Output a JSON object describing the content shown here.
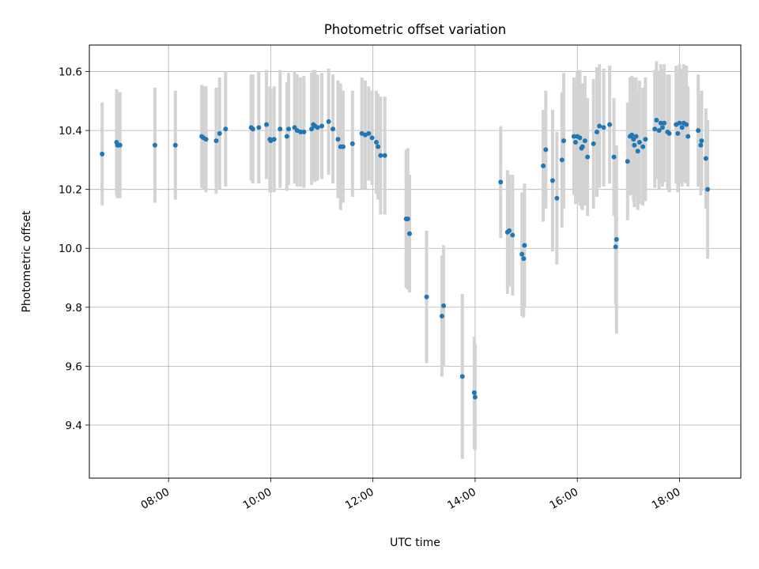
{
  "chart_data": {
    "type": "scatter",
    "title": "Photometric offset variation",
    "xlabel": "UTC time",
    "ylabel": "Photometric offset",
    "xlim": [
      "06:27",
      "19:12"
    ],
    "ylim": [
      9.22,
      10.69
    ],
    "x_ticks": [
      "08:00",
      "10:00",
      "12:00",
      "14:00",
      "16:00",
      "18:00"
    ],
    "y_ticks": [
      9.4,
      9.6,
      9.8,
      10.0,
      10.2,
      10.4,
      10.6
    ],
    "y_tick_labels": [
      "9.4",
      "9.6",
      "9.8",
      "10.0",
      "10.2",
      "10.4",
      "10.6"
    ],
    "grid": true,
    "marker_color": "#1f77b4",
    "errorbar_color": "#d3d3d3",
    "points": [
      {
        "x": "06:42",
        "y": 10.32,
        "yerr": 0.175
      },
      {
        "x": "06:59",
        "y": 10.36,
        "yerr": 0.18
      },
      {
        "x": "07:00",
        "y": 10.35,
        "yerr": 0.18
      },
      {
        "x": "07:03",
        "y": 10.35,
        "yerr": 0.18
      },
      {
        "x": "07:44",
        "y": 10.35,
        "yerr": 0.195
      },
      {
        "x": "08:08",
        "y": 10.35,
        "yerr": 0.185
      },
      {
        "x": "08:39",
        "y": 10.38,
        "yerr": 0.175
      },
      {
        "x": "08:41",
        "y": 10.375,
        "yerr": 0.175
      },
      {
        "x": "08:44",
        "y": 10.37,
        "yerr": 0.18
      },
      {
        "x": "08:56",
        "y": 10.365,
        "yerr": 0.18
      },
      {
        "x": "09:00",
        "y": 10.39,
        "yerr": 0.19
      },
      {
        "x": "09:07",
        "y": 10.405,
        "yerr": 0.195
      },
      {
        "x": "09:37",
        "y": 10.41,
        "yerr": 0.18
      },
      {
        "x": "09:39",
        "y": 10.405,
        "yerr": 0.185
      },
      {
        "x": "09:46",
        "y": 10.41,
        "yerr": 0.19
      },
      {
        "x": "09:55",
        "y": 10.42,
        "yerr": 0.185
      },
      {
        "x": "09:59",
        "y": 10.37,
        "yerr": 0.18
      },
      {
        "x": "10:00",
        "y": 10.365,
        "yerr": 0.175
      },
      {
        "x": "10:04",
        "y": 10.37,
        "yerr": 0.18
      },
      {
        "x": "10:11",
        "y": 10.405,
        "yerr": 0.2
      },
      {
        "x": "10:19",
        "y": 10.38,
        "yerr": 0.185
      },
      {
        "x": "10:21",
        "y": 10.405,
        "yerr": 0.19
      },
      {
        "x": "10:28",
        "y": 10.41,
        "yerr": 0.19
      },
      {
        "x": "10:31",
        "y": 10.4,
        "yerr": 0.19
      },
      {
        "x": "10:35",
        "y": 10.395,
        "yerr": 0.185
      },
      {
        "x": "10:39",
        "y": 10.395,
        "yerr": 0.19
      },
      {
        "x": "10:48",
        "y": 10.405,
        "yerr": 0.19
      },
      {
        "x": "10:50",
        "y": 10.42,
        "yerr": 0.185
      },
      {
        "x": "10:52",
        "y": 10.415,
        "yerr": 0.19
      },
      {
        "x": "10:55",
        "y": 10.41,
        "yerr": 0.18
      },
      {
        "x": "11:00",
        "y": 10.415,
        "yerr": 0.18
      },
      {
        "x": "11:08",
        "y": 10.43,
        "yerr": 0.18
      },
      {
        "x": "11:13",
        "y": 10.405,
        "yerr": 0.185
      },
      {
        "x": "11:19",
        "y": 10.37,
        "yerr": 0.2
      },
      {
        "x": "11:22",
        "y": 10.345,
        "yerr": 0.215
      },
      {
        "x": "11:25",
        "y": 10.345,
        "yerr": 0.19
      },
      {
        "x": "11:36",
        "y": 10.355,
        "yerr": 0.18
      },
      {
        "x": "11:47",
        "y": 10.39,
        "yerr": 0.19
      },
      {
        "x": "11:51",
        "y": 10.385,
        "yerr": 0.185
      },
      {
        "x": "11:55",
        "y": 10.39,
        "yerr": 0.16
      },
      {
        "x": "11:59",
        "y": 10.375,
        "yerr": 0.16
      },
      {
        "x": "12:04",
        "y": 10.36,
        "yerr": 0.175
      },
      {
        "x": "12:06",
        "y": 10.345,
        "yerr": 0.18
      },
      {
        "x": "12:09",
        "y": 10.315,
        "yerr": 0.2
      },
      {
        "x": "12:14",
        "y": 10.315,
        "yerr": 0.2
      },
      {
        "x": "12:39",
        "y": 10.1,
        "yerr": 0.235
      },
      {
        "x": "12:41",
        "y": 10.1,
        "yerr": 0.24
      },
      {
        "x": "12:43",
        "y": 10.05,
        "yerr": 0.2
      },
      {
        "x": "13:03",
        "y": 9.835,
        "yerr": 0.225
      },
      {
        "x": "13:21",
        "y": 9.77,
        "yerr": 0.205
      },
      {
        "x": "13:23",
        "y": 9.805,
        "yerr": 0.205
      },
      {
        "x": "13:45",
        "y": 9.565,
        "yerr": 0.28
      },
      {
        "x": "13:59",
        "y": 9.51,
        "yerr": 0.19
      },
      {
        "x": "14:00",
        "y": 9.495,
        "yerr": 0.18
      },
      {
        "x": "14:30",
        "y": 10.225,
        "yerr": 0.19
      },
      {
        "x": "14:38",
        "y": 10.055,
        "yerr": 0.21
      },
      {
        "x": "14:40",
        "y": 10.06,
        "yerr": 0.19
      },
      {
        "x": "14:44",
        "y": 10.045,
        "yerr": 0.205
      },
      {
        "x": "14:55",
        "y": 9.98,
        "yerr": 0.21
      },
      {
        "x": "14:57",
        "y": 9.965,
        "yerr": 0.2
      },
      {
        "x": "14:58",
        "y": 10.01,
        "yerr": 0.21
      },
      {
        "x": "15:20",
        "y": 10.28,
        "yerr": 0.19
      },
      {
        "x": "15:23",
        "y": 10.335,
        "yerr": 0.2
      },
      {
        "x": "15:31",
        "y": 10.23,
        "yerr": 0.24
      },
      {
        "x": "15:36",
        "y": 10.17,
        "yerr": 0.225
      },
      {
        "x": "15:42",
        "y": 10.3,
        "yerr": 0.23
      },
      {
        "x": "15:44",
        "y": 10.365,
        "yerr": 0.23
      },
      {
        "x": "15:56",
        "y": 10.38,
        "yerr": 0.2
      },
      {
        "x": "15:58",
        "y": 10.36,
        "yerr": 0.21
      },
      {
        "x": "16:00",
        "y": 10.38,
        "yerr": 0.22
      },
      {
        "x": "16:03",
        "y": 10.375,
        "yerr": 0.23
      },
      {
        "x": "16:05",
        "y": 10.34,
        "yerr": 0.205
      },
      {
        "x": "16:06",
        "y": 10.345,
        "yerr": 0.215
      },
      {
        "x": "16:09",
        "y": 10.365,
        "yerr": 0.22
      },
      {
        "x": "16:12",
        "y": 10.31,
        "yerr": 0.2
      },
      {
        "x": "16:19",
        "y": 10.355,
        "yerr": 0.22
      },
      {
        "x": "16:23",
        "y": 10.395,
        "yerr": 0.22
      },
      {
        "x": "16:26",
        "y": 10.415,
        "yerr": 0.21
      },
      {
        "x": "16:31",
        "y": 10.41,
        "yerr": 0.2
      },
      {
        "x": "16:38",
        "y": 10.42,
        "yerr": 0.2
      },
      {
        "x": "16:43",
        "y": 10.31,
        "yerr": 0.2
      },
      {
        "x": "16:45",
        "y": 10.005,
        "yerr": 0.195
      },
      {
        "x": "16:46",
        "y": 10.03,
        "yerr": 0.32
      },
      {
        "x": "16:59",
        "y": 10.295,
        "yerr": 0.2
      },
      {
        "x": "17:02",
        "y": 10.38,
        "yerr": 0.2
      },
      {
        "x": "17:04",
        "y": 10.385,
        "yerr": 0.2
      },
      {
        "x": "17:06",
        "y": 10.37,
        "yerr": 0.21
      },
      {
        "x": "17:07",
        "y": 10.35,
        "yerr": 0.21
      },
      {
        "x": "17:09",
        "y": 10.38,
        "yerr": 0.2
      },
      {
        "x": "17:11",
        "y": 10.33,
        "yerr": 0.2
      },
      {
        "x": "17:13",
        "y": 10.36,
        "yerr": 0.21
      },
      {
        "x": "17:17",
        "y": 10.345,
        "yerr": 0.2
      },
      {
        "x": "17:20",
        "y": 10.37,
        "yerr": 0.21
      },
      {
        "x": "17:31",
        "y": 10.405,
        "yerr": 0.2
      },
      {
        "x": "17:33",
        "y": 10.435,
        "yerr": 0.2
      },
      {
        "x": "17:36",
        "y": 10.4,
        "yerr": 0.2
      },
      {
        "x": "17:38",
        "y": 10.425,
        "yerr": 0.2
      },
      {
        "x": "17:40",
        "y": 10.41,
        "yerr": 0.2
      },
      {
        "x": "17:42",
        "y": 10.425,
        "yerr": 0.2
      },
      {
        "x": "17:46",
        "y": 10.395,
        "yerr": 0.195
      },
      {
        "x": "17:48",
        "y": 10.39,
        "yerr": 0.2
      },
      {
        "x": "17:56",
        "y": 10.42,
        "yerr": 0.2
      },
      {
        "x": "17:58",
        "y": 10.39,
        "yerr": 0.2
      },
      {
        "x": "18:00",
        "y": 10.425,
        "yerr": 0.2
      },
      {
        "x": "18:03",
        "y": 10.41,
        "yerr": 0.2
      },
      {
        "x": "18:05",
        "y": 10.425,
        "yerr": 0.2
      },
      {
        "x": "18:08",
        "y": 10.42,
        "yerr": 0.2
      },
      {
        "x": "18:10",
        "y": 10.38,
        "yerr": 0.17
      },
      {
        "x": "18:22",
        "y": 10.4,
        "yerr": 0.19
      },
      {
        "x": "18:25",
        "y": 10.35,
        "yerr": 0.17
      },
      {
        "x": "18:26",
        "y": 10.365,
        "yerr": 0.17
      },
      {
        "x": "18:31",
        "y": 10.305,
        "yerr": 0.17
      },
      {
        "x": "18:33",
        "y": 10.2,
        "yerr": 0.235
      }
    ]
  }
}
